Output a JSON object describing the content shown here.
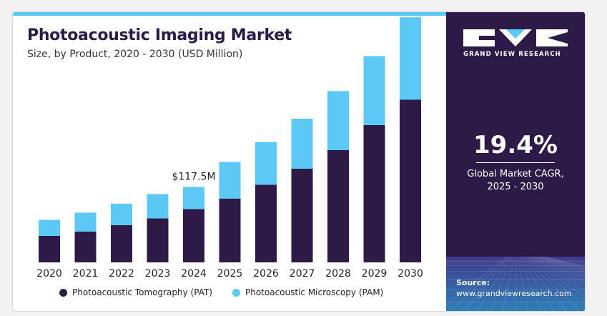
{
  "header": {
    "title": "Photoacoustic Imaging Market",
    "subtitle": "Size, by Product, 2020 - 2030 (USD Million)"
  },
  "colors": {
    "pat": "#2e1a47",
    "pam": "#5bc8f5",
    "panel": "#2e1a47",
    "accent": "#5ac8f0"
  },
  "chart_data": {
    "type": "bar",
    "stacked": true,
    "categories": [
      "2020",
      "2021",
      "2022",
      "2023",
      "2024",
      "2025",
      "2026",
      "2027",
      "2028",
      "2029",
      "2030"
    ],
    "series": [
      {
        "name": "Photoacoustic Tomography (PAT)",
        "color": "#2e1a47",
        "values": [
          41.3,
          48.0,
          58.0,
          68.5,
          83.0,
          99.5,
          121.0,
          146.0,
          175.0,
          214.0,
          253.5
        ]
      },
      {
        "name": "Photoacoustic Microscopy (PAM)",
        "color": "#5bc8f5",
        "values": [
          25.0,
          29.5,
          33.5,
          38.0,
          34.5,
          57.0,
          66.5,
          78.0,
          92.0,
          107.5,
          128.5
        ]
      }
    ],
    "annotations": [
      {
        "category": "2024",
        "text": "$117.5M"
      }
    ],
    "ylim": [
      0,
      390
    ],
    "grid": false,
    "legend_position": "bottom"
  },
  "panel": {
    "brand": "GRAND VIEW RESEARCH",
    "cagr_value": "19.4%",
    "cagr_label": "Global Market CAGR,",
    "cagr_period": "2025 - 2030",
    "source_title": "Source:",
    "source_url": "www.grandviewresearch.com"
  }
}
